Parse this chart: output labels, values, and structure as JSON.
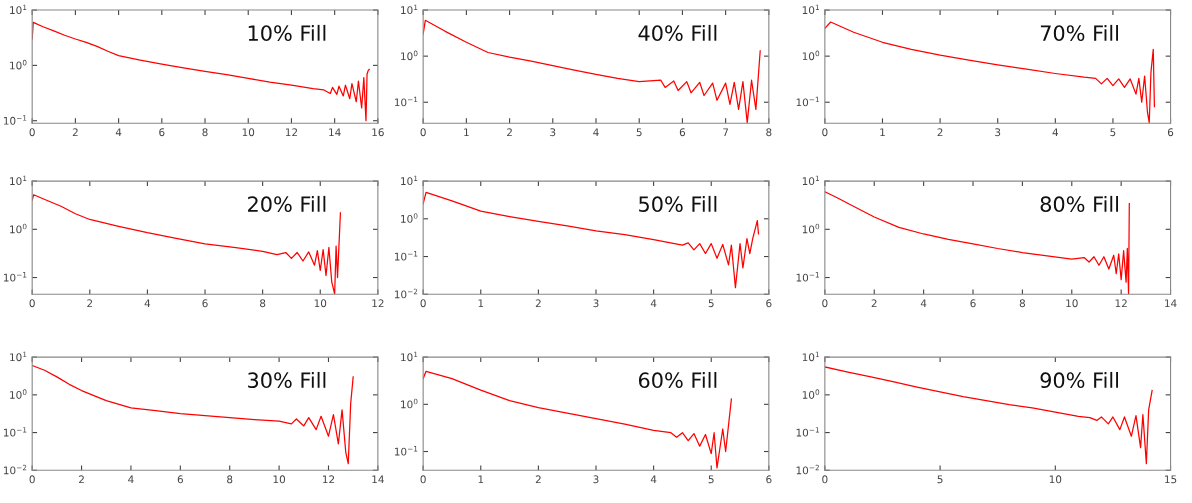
{
  "chart_data": [
    {
      "type": "line",
      "annotations": [
        "10% Fill"
      ],
      "log": "y",
      "xlim": [
        0,
        16
      ],
      "xticks": [
        0,
        2,
        4,
        6,
        8,
        10,
        12,
        14,
        16
      ],
      "ylim": [
        0.09,
        10
      ],
      "yticks": [
        {
          "value": 0.1,
          "label": "10$^{−1}$"
        },
        {
          "value": 1,
          "label": "10$^{0}$"
        },
        {
          "value": 10,
          "label": "10$^{1}$"
        }
      ],
      "series": [
        {
          "color": "#ff0000",
          "x": [
            0,
            0.05,
            0.5,
            1,
            1.5,
            2,
            2.5,
            3,
            3.5,
            4,
            5,
            6,
            7,
            8,
            9,
            10,
            11,
            12,
            13,
            13.5,
            13.8,
            13.9,
            14.1,
            14.2,
            14.4,
            14.5,
            14.7,
            14.8,
            15.0,
            15.1,
            15.25,
            15.35,
            15.45,
            15.5,
            15.55,
            15.6
          ],
          "values": [
            3,
            6,
            5,
            4.2,
            3.5,
            3,
            2.6,
            2.2,
            1.8,
            1.5,
            1.25,
            1.05,
            0.9,
            0.78,
            0.68,
            0.58,
            0.5,
            0.44,
            0.38,
            0.36,
            0.31,
            0.4,
            0.3,
            0.42,
            0.28,
            0.44,
            0.25,
            0.47,
            0.22,
            0.52,
            0.17,
            0.6,
            0.1,
            0.7,
            0.8,
            0.85
          ]
        }
      ]
    },
    {
      "type": "line",
      "annotations": [
        "40% Fill"
      ],
      "log": "y",
      "xlim": [
        0,
        8
      ],
      "xticks": [
        0,
        1,
        2,
        3,
        4,
        5,
        6,
        7,
        8
      ],
      "ylim": [
        0.035,
        10
      ],
      "yticks": [
        {
          "value": 0.1,
          "label": "10$^{−1}$"
        },
        {
          "value": 1,
          "label": "10$^{0}$"
        },
        {
          "value": 10,
          "label": "10$^{1}$"
        }
      ],
      "series": [
        {
          "color": "#ff0000",
          "x": [
            0,
            0.05,
            0.5,
            1,
            1.5,
            2,
            2.5,
            3,
            3.5,
            4,
            4.5,
            5,
            5.5,
            5.6,
            5.8,
            5.9,
            6.1,
            6.2,
            6.4,
            6.5,
            6.7,
            6.8,
            7.0,
            7.1,
            7.2,
            7.3,
            7.4,
            7.5,
            7.6,
            7.7,
            7.8
          ],
          "values": [
            3,
            6,
            3.5,
            2,
            1.2,
            0.95,
            0.78,
            0.62,
            0.5,
            0.4,
            0.33,
            0.28,
            0.3,
            0.21,
            0.29,
            0.18,
            0.28,
            0.16,
            0.27,
            0.14,
            0.26,
            0.11,
            0.26,
            0.09,
            0.27,
            0.07,
            0.28,
            0.036,
            0.3,
            0.07,
            1.3
          ]
        }
      ]
    },
    {
      "type": "line",
      "annotations": [
        "70% Fill"
      ],
      "log": "y",
      "xlim": [
        0,
        6
      ],
      "xticks": [
        0,
        1,
        2,
        3,
        4,
        5,
        6
      ],
      "ylim": [
        0.035,
        10
      ],
      "yticks": [
        {
          "value": 0.1,
          "label": "10$^{−1}$"
        },
        {
          "value": 1,
          "label": "10$^{0}$"
        },
        {
          "value": 10,
          "label": "10$^{1}$"
        }
      ],
      "series": [
        {
          "color": "#ff0000",
          "x": [
            0,
            0.1,
            0.5,
            1,
            1.5,
            2,
            2.5,
            3,
            3.5,
            4,
            4.5,
            4.7,
            4.8,
            4.9,
            5.0,
            5.1,
            5.2,
            5.3,
            5.4,
            5.45,
            5.5,
            5.55,
            5.6,
            5.63,
            5.66,
            5.7,
            5.72
          ],
          "values": [
            4,
            5.5,
            3.3,
            2,
            1.4,
            1.05,
            0.82,
            0.65,
            0.52,
            0.42,
            0.35,
            0.33,
            0.25,
            0.33,
            0.23,
            0.32,
            0.21,
            0.32,
            0.15,
            0.33,
            0.1,
            0.37,
            0.06,
            0.036,
            0.45,
            1.4,
            0.08
          ]
        }
      ]
    },
    {
      "type": "line",
      "annotations": [
        "20% Fill"
      ],
      "log": "y",
      "xlim": [
        0,
        12
      ],
      "xticks": [
        0,
        2,
        4,
        6,
        8,
        10,
        12
      ],
      "ylim": [
        0.045,
        10
      ],
      "yticks": [
        {
          "value": 0.1,
          "label": "10$^{−1}$"
        },
        {
          "value": 1,
          "label": "10$^{0}$"
        },
        {
          "value": 10,
          "label": "10$^{1}$"
        }
      ],
      "series": [
        {
          "color": "#ff0000",
          "x": [
            0,
            0.05,
            0.5,
            1,
            1.5,
            2,
            3,
            4,
            5,
            6,
            7,
            8,
            8.5,
            8.8,
            9.0,
            9.2,
            9.4,
            9.6,
            9.8,
            9.9,
            10.0,
            10.1,
            10.2,
            10.3,
            10.4,
            10.5,
            10.55,
            10.6,
            10.7
          ],
          "values": [
            4,
            5.2,
            4,
            3,
            2.1,
            1.6,
            1.15,
            0.85,
            0.65,
            0.5,
            0.42,
            0.35,
            0.3,
            0.33,
            0.25,
            0.33,
            0.22,
            0.34,
            0.18,
            0.36,
            0.14,
            0.38,
            0.11,
            0.42,
            0.08,
            0.046,
            0.45,
            0.1,
            2.2
          ]
        }
      ]
    },
    {
      "type": "line",
      "annotations": [
        "50% Fill"
      ],
      "log": "y",
      "xlim": [
        0,
        6
      ],
      "xticks": [
        0,
        1,
        2,
        3,
        4,
        5,
        6
      ],
      "ylim": [
        0.01,
        10
      ],
      "yticks": [
        {
          "value": 0.01,
          "label": "10$^{−2}$"
        },
        {
          "value": 0.1,
          "label": "10$^{−1}$"
        },
        {
          "value": 1,
          "label": "10$^{0}$"
        },
        {
          "value": 10,
          "label": "10$^{1}$"
        }
      ],
      "series": [
        {
          "color": "#ff0000",
          "x": [
            0,
            0.05,
            0.5,
            1,
            1.5,
            2,
            2.5,
            3,
            3.5,
            4,
            4.5,
            4.6,
            4.7,
            4.8,
            4.9,
            5.0,
            5.1,
            5.2,
            5.3,
            5.35,
            5.42,
            5.5,
            5.55,
            5.62,
            5.67,
            5.72,
            5.8,
            5.82
          ],
          "values": [
            2.5,
            5,
            3,
            1.6,
            1.15,
            0.85,
            0.65,
            0.48,
            0.38,
            0.28,
            0.2,
            0.23,
            0.15,
            0.22,
            0.12,
            0.22,
            0.09,
            0.21,
            0.06,
            0.2,
            0.015,
            0.22,
            0.05,
            0.3,
            0.12,
            0.3,
            0.9,
            0.4
          ]
        }
      ]
    },
    {
      "type": "line",
      "annotations": [
        "80% Fill"
      ],
      "log": "y",
      "xlim": [
        0,
        14
      ],
      "xticks": [
        0,
        2,
        4,
        6,
        8,
        10,
        12,
        14
      ],
      "ylim": [
        0.045,
        10
      ],
      "yticks": [
        {
          "value": 0.1,
          "label": "10$^{−1}$"
        },
        {
          "value": 1,
          "label": "10$^{0}$"
        },
        {
          "value": 10,
          "label": "10$^{1}$"
        }
      ],
      "series": [
        {
          "color": "#ff0000",
          "x": [
            0,
            0.5,
            1,
            2,
            3,
            4,
            5,
            6,
            7,
            8,
            9,
            10,
            10.5,
            10.7,
            10.9,
            11.1,
            11.3,
            11.5,
            11.7,
            11.8,
            11.9,
            12.0,
            12.1,
            12.2,
            12.25,
            12.3,
            12.33
          ],
          "values": [
            6,
            4.5,
            3.3,
            1.8,
            1.1,
            0.8,
            0.62,
            0.5,
            0.4,
            0.33,
            0.28,
            0.24,
            0.26,
            0.21,
            0.27,
            0.18,
            0.27,
            0.15,
            0.29,
            0.12,
            0.31,
            0.09,
            0.36,
            0.08,
            0.4,
            0.046,
            3.4
          ]
        }
      ]
    },
    {
      "type": "line",
      "annotations": [
        "30% Fill"
      ],
      "log": "y",
      "xlim": [
        0,
        14
      ],
      "xticks": [
        0,
        2,
        4,
        6,
        8,
        10,
        12,
        14
      ],
      "ylim": [
        0.01,
        10
      ],
      "yticks": [
        {
          "value": 0.01,
          "label": "10$^{−2}$"
        },
        {
          "value": 0.1,
          "label": "10$^{−1}$"
        },
        {
          "value": 1,
          "label": "10$^{0}$"
        },
        {
          "value": 10,
          "label": "10$^{1}$"
        }
      ],
      "series": [
        {
          "color": "#ff0000",
          "x": [
            0,
            0.5,
            1,
            1.5,
            2,
            3,
            4,
            5,
            6,
            7,
            8,
            9,
            10,
            10.5,
            10.7,
            11.0,
            11.2,
            11.5,
            11.7,
            12.0,
            12.2,
            12.4,
            12.55,
            12.7,
            12.8,
            12.9,
            13.0
          ],
          "values": [
            6,
            4.5,
            3,
            1.9,
            1.3,
            0.7,
            0.45,
            0.38,
            0.32,
            0.28,
            0.25,
            0.22,
            0.2,
            0.17,
            0.23,
            0.15,
            0.25,
            0.12,
            0.27,
            0.08,
            0.3,
            0.05,
            0.4,
            0.03,
            0.015,
            0.6,
            3
          ]
        }
      ]
    },
    {
      "type": "line",
      "annotations": [
        "60% Fill"
      ],
      "log": "y",
      "xlim": [
        0,
        6
      ],
      "xticks": [
        0,
        1,
        2,
        3,
        4,
        5,
        6
      ],
      "ylim": [
        0.04,
        10
      ],
      "yticks": [
        {
          "value": 0.1,
          "label": "10$^{−1}$"
        },
        {
          "value": 1,
          "label": "10$^{0}$"
        },
        {
          "value": 10,
          "label": "10$^{1}$"
        }
      ],
      "series": [
        {
          "color": "#ff0000",
          "x": [
            0,
            0.05,
            0.5,
            1,
            1.5,
            2,
            2.5,
            3,
            3.5,
            4,
            4.3,
            4.4,
            4.5,
            4.6,
            4.7,
            4.8,
            4.9,
            5.0,
            5.05,
            5.1,
            5.2,
            5.25,
            5.35
          ],
          "values": [
            3.5,
            5,
            3.5,
            2,
            1.2,
            0.85,
            0.65,
            0.5,
            0.38,
            0.28,
            0.25,
            0.2,
            0.25,
            0.17,
            0.24,
            0.13,
            0.23,
            0.09,
            0.25,
            0.045,
            0.3,
            0.1,
            1.3
          ]
        }
      ]
    },
    {
      "type": "line",
      "annotations": [
        "90% Fill"
      ],
      "log": "y",
      "xlim": [
        0,
        15
      ],
      "xticks": [
        0,
        5,
        10,
        15
      ],
      "ylim": [
        0.01,
        10
      ],
      "yticks": [
        {
          "value": 0.01,
          "label": "10$^{−2}$"
        },
        {
          "value": 0.1,
          "label": "10$^{−1}$"
        },
        {
          "value": 1,
          "label": "10$^{0}$"
        },
        {
          "value": 10,
          "label": "10$^{1}$"
        }
      ],
      "series": [
        {
          "color": "#ff0000",
          "x": [
            0,
            1,
            2,
            3,
            4,
            5,
            6,
            7,
            8,
            9,
            10,
            11,
            11.5,
            11.8,
            12.0,
            12.3,
            12.5,
            12.8,
            13.0,
            13.3,
            13.5,
            13.7,
            13.8,
            13.95,
            14.05,
            14.2
          ],
          "values": [
            5.5,
            4,
            3,
            2.2,
            1.6,
            1.2,
            0.9,
            0.7,
            0.55,
            0.45,
            0.35,
            0.27,
            0.25,
            0.21,
            0.26,
            0.17,
            0.26,
            0.12,
            0.26,
            0.08,
            0.28,
            0.04,
            0.3,
            0.015,
            0.4,
            1.3
          ]
        }
      ]
    }
  ]
}
